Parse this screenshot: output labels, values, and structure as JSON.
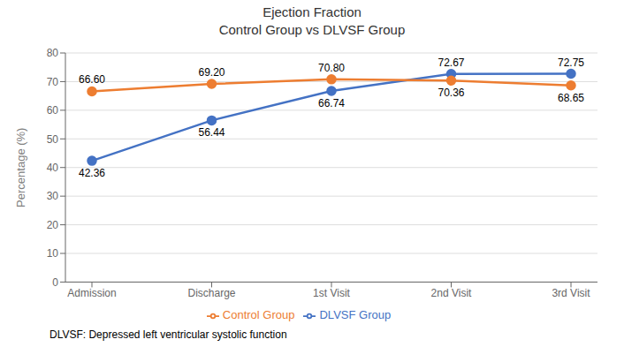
{
  "chart_data": {
    "type": "line",
    "title": "Ejection Fraction",
    "subtitle": "Control Group vs DLVSF Group",
    "y_label": "Percentage (%)",
    "footnote": "DLVSF: Depressed left ventricular systolic function",
    "categories": [
      "Admission",
      "Discharge",
      "1st Visit",
      "2nd Visit",
      "3rd Visit"
    ],
    "series": [
      {
        "name": "DLVSF Group",
        "color": "#4472C4",
        "marker": "circle",
        "line_style": "solid",
        "values": [
          42.36,
          56.44,
          66.74,
          72.67,
          72.75
        ],
        "value_labels": [
          "42.36",
          "56.44",
          "66.74",
          "72.67",
          "72.75"
        ]
      },
      {
        "name": "Control Group",
        "color": "#ED7D31",
        "marker": "circle",
        "line_style": "solid",
        "values": [
          66.6,
          69.2,
          70.8,
          70.36,
          68.65
        ],
        "value_labels": [
          "66.60",
          "69.20",
          "70.80",
          "70.36",
          "68.65"
        ]
      }
    ],
    "ylim": [
      0,
      80
    ],
    "yticks": [
      0,
      10,
      20,
      30,
      40,
      50,
      60,
      70,
      80
    ],
    "grid": true,
    "legend": "bottom",
    "data_labels": true
  }
}
